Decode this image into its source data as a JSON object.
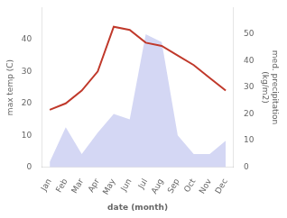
{
  "chart_data": {
    "type": "line",
    "xlabel": "date (month)",
    "ylabel": "max temp (C)",
    "y2label": "med. precipitation\n(kg/m2)",
    "categories": [
      "Jan",
      "Feb",
      "Mar",
      "Apr",
      "May",
      "Jun",
      "Jul",
      "Aug",
      "Sep",
      "Oct",
      "Nov",
      "Dec"
    ],
    "series": [
      {
        "type": "line",
        "color": "#c0392b",
        "values": [
          18,
          20,
          24,
          30,
          44,
          43,
          39,
          38,
          35,
          32,
          28,
          24
        ]
      },
      {
        "type": "area",
        "color": "#c5caf0",
        "axis": "y2",
        "values": [
          2,
          15,
          5,
          13,
          20,
          18,
          50,
          47,
          12,
          5,
          5,
          10
        ]
      }
    ],
    "ylim": [
      0,
      50
    ],
    "yticks": [
      0,
      10,
      20,
      30,
      40
    ],
    "y2lim": [
      0,
      60
    ],
    "y2ticks": [
      0,
      10,
      20,
      30,
      40,
      50
    ],
    "grid": false
  }
}
